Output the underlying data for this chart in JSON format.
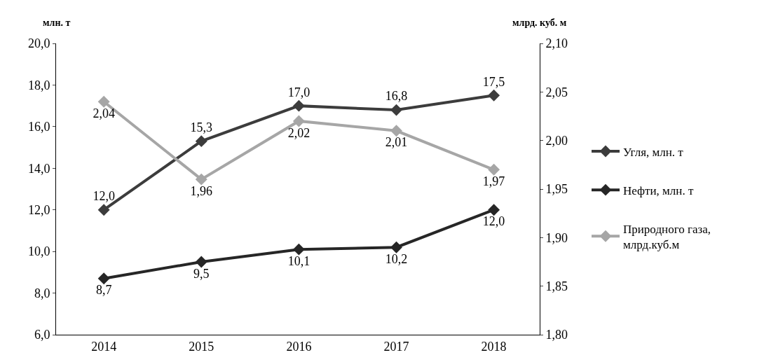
{
  "chart_data": {
    "type": "line",
    "categories": [
      "2014",
      "2015",
      "2016",
      "2017",
      "2018"
    ],
    "ylabel": "млн. т",
    "y2label": "млрд. куб. м",
    "ylim": [
      6,
      20
    ],
    "yticks": [
      {
        "value": 6,
        "label": "6,0"
      },
      {
        "value": 8,
        "label": "8,0"
      },
      {
        "value": 10,
        "label": "10,0"
      },
      {
        "value": 12,
        "label": "12,0"
      },
      {
        "value": 14,
        "label": "14,0"
      },
      {
        "value": 16,
        "label": "16,0"
      },
      {
        "value": 18,
        "label": "18,0"
      },
      {
        "value": 20,
        "label": "20,0"
      }
    ],
    "y2lim": [
      1.8,
      2.1
    ],
    "y2ticks": [
      {
        "value": 1.8,
        "label": "1,80"
      },
      {
        "value": 1.85,
        "label": "1,85"
      },
      {
        "value": 1.9,
        "label": "1,90"
      },
      {
        "value": 1.95,
        "label": "1,95"
      },
      {
        "value": 2.0,
        "label": "2,00"
      },
      {
        "value": 2.05,
        "label": "2,05"
      },
      {
        "value": 2.1,
        "label": "2,10"
      }
    ],
    "series": [
      {
        "name": "Угля, млн. т",
        "color": "#3c3c3c",
        "values": [
          12.0,
          15.3,
          17.0,
          16.8,
          17.5
        ],
        "value_labels": [
          "12,0",
          "15,3",
          "17,0",
          "16,8",
          "17,5"
        ]
      },
      {
        "name": "Нефти, млн. т",
        "color": "#262626",
        "values": [
          8.7,
          9.5,
          10.1,
          10.2,
          12.0
        ],
        "value_labels": [
          "8,7",
          "9,5",
          "10,1",
          "10,2",
          "12,0"
        ]
      },
      {
        "name": "Природного газа, млрд.куб.м",
        "color": "#a6a6a6",
        "axis": "y2",
        "values": [
          2.04,
          1.96,
          2.02,
          2.01,
          1.97
        ],
        "value_labels": [
          "2,04",
          "1,96",
          "2,02",
          "2,01",
          "1,97"
        ]
      }
    ],
    "legend": "right",
    "marker": "diamond",
    "line_style": "solid"
  }
}
